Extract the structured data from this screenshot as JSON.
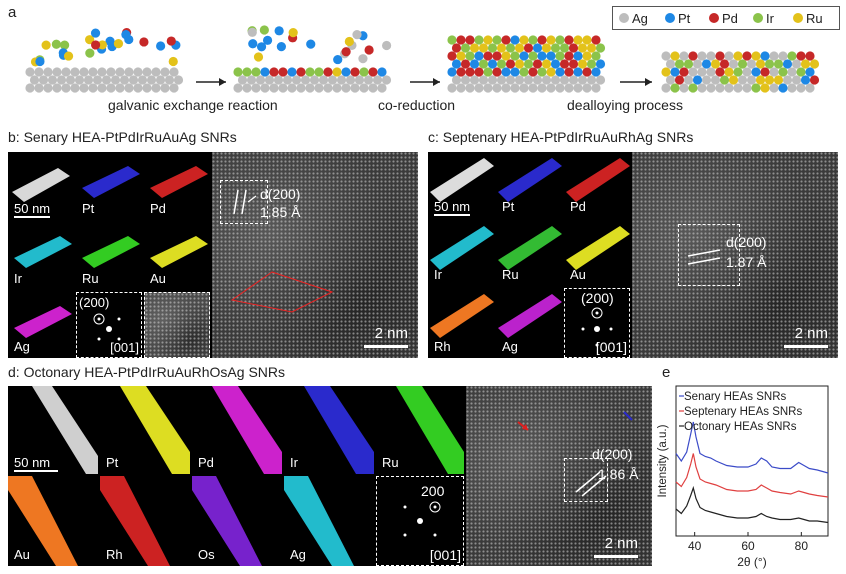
{
  "panel_a": {
    "letter": "a",
    "legend": [
      {
        "label": "Ag",
        "color": "#bdbdbd"
      },
      {
        "label": "Pt",
        "color": "#1e88e5"
      },
      {
        "label": "Pd",
        "color": "#c62828"
      },
      {
        "label": "Ir",
        "color": "#8bc34a"
      },
      {
        "label": "Ru",
        "color": "#e3c21a"
      }
    ],
    "steps": [
      "galvanic exchange reaction",
      "co-reduction",
      "dealloying process"
    ]
  },
  "panel_b": {
    "letter": "b:",
    "title": "Senary HEA-PtPdIrRuAuAg SNRs",
    "maps": [
      "Pt",
      "Pd",
      "Ir",
      "Ru",
      "Au",
      "Ag"
    ],
    "scale_small": "50 nm",
    "d_label": "d(200)",
    "d_value": "1.85 Å",
    "fft_spot": "(200)",
    "fft_zone": "[001]",
    "scale_big": "2 nm",
    "colors": {
      "Pt": "#2a2acc",
      "Pd": "#cc2222",
      "Ir": "#22bbcc",
      "Ru": "#33cc22",
      "Au": "#dddd22",
      "Ag": "#cc22cc"
    }
  },
  "panel_c": {
    "letter": "c:",
    "title": "Septenary HEA-PtPdIrRuAuRhAg SNRs",
    "maps": [
      "Pt",
      "Pd",
      "Ir",
      "Ru",
      "Au",
      "Rh",
      "Ag"
    ],
    "scale_small": "50 nm",
    "d_label": "d(200)",
    "d_value": "1.87 Å",
    "fft_spot": "(200)",
    "fft_zone": "[001]",
    "scale_big": "2 nm",
    "colors": {
      "Pt": "#2a2acc",
      "Pd": "#cc2222",
      "Ir": "#22bbcc",
      "Ru": "#33bb33",
      "Au": "#dddd22",
      "Rh": "#ee7722",
      "Ag": "#bb22cc"
    }
  },
  "panel_d": {
    "letter": "d:",
    "title": "Octonary HEA-PtPdIrRuAuRhOsAg SNRs",
    "maps": [
      "Pt",
      "Pd",
      "Ir",
      "Ru",
      "Au",
      "Rh",
      "Os",
      "Ag"
    ],
    "scale_small": "50 nm",
    "d_label": "d(200)",
    "d_value": "1.86 Å",
    "fft_spot": "200",
    "fft_zone": "[001]",
    "scale_big": "2 nm",
    "colors": {
      "Pt": "#dddd22",
      "Pd": "#cc22cc",
      "Ir": "#2a2acc",
      "Ru": "#33cc22",
      "Au": "#ee7722",
      "Rh": "#cc2222",
      "Os": "#7722cc",
      "Ag": "#22bbcc"
    }
  },
  "chart_data": {
    "type": "line",
    "panel_letter": "e",
    "xlabel": "2θ (°)",
    "ylabel": "Intensity (a.u.)",
    "xlim": [
      33,
      90
    ],
    "xticks": [
      40,
      60,
      80
    ],
    "series": [
      {
        "name": "Senary HEAs SNRs",
        "color": "#3b4bc8",
        "x": [
          33,
          35,
          37,
          38.5,
          39.5,
          40.5,
          42,
          44,
          46,
          48,
          52,
          56,
          60,
          63,
          65,
          67,
          69,
          72,
          76,
          79,
          81,
          83,
          86,
          90
        ],
        "y": [
          0.55,
          0.5,
          0.56,
          0.68,
          0.76,
          0.66,
          0.55,
          0.53,
          0.52,
          0.5,
          0.47,
          0.46,
          0.46,
          0.48,
          0.52,
          0.5,
          0.46,
          0.45,
          0.45,
          0.49,
          0.47,
          0.45,
          0.44,
          0.42
        ]
      },
      {
        "name": "Septenary HEAs SNRs",
        "color": "#e04040",
        "x": [
          33,
          35,
          37,
          38.5,
          39.5,
          40.5,
          42,
          44,
          46,
          48,
          52,
          56,
          60,
          63,
          65,
          67,
          69,
          72,
          76,
          79,
          81,
          83,
          86,
          90
        ],
        "y": [
          0.36,
          0.33,
          0.39,
          0.48,
          0.55,
          0.46,
          0.38,
          0.36,
          0.35,
          0.34,
          0.31,
          0.3,
          0.3,
          0.31,
          0.34,
          0.32,
          0.3,
          0.29,
          0.28,
          0.3,
          0.29,
          0.28,
          0.27,
          0.26
        ]
      },
      {
        "name": "Octonary HEAs SNRs",
        "color": "#222222",
        "x": [
          33,
          35,
          37,
          38.5,
          39.5,
          40.5,
          42,
          44,
          46,
          48,
          52,
          56,
          60,
          63,
          65,
          67,
          69,
          72,
          76,
          79,
          81,
          83,
          86,
          90
        ],
        "y": [
          0.18,
          0.15,
          0.2,
          0.27,
          0.32,
          0.25,
          0.19,
          0.17,
          0.16,
          0.15,
          0.13,
          0.12,
          0.12,
          0.13,
          0.15,
          0.13,
          0.12,
          0.11,
          0.11,
          0.12,
          0.11,
          0.1,
          0.1,
          0.09
        ]
      }
    ]
  }
}
